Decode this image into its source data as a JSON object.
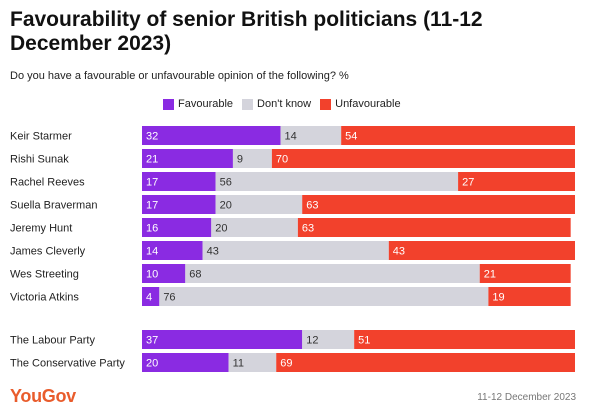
{
  "header": {
    "title": "Favourability of senior British politicians (11-12 December 2023)",
    "subtitle": "Do you have a favourable or unfavourable opinion of the following? %"
  },
  "footer": {
    "brand": "YouGov",
    "date": "11-12 December 2023"
  },
  "colors": {
    "favourable": "#8a2be2",
    "dont_know": "#d4d4dc",
    "unfavourable": "#f2412c"
  },
  "chart_data": {
    "type": "bar",
    "orientation": "horizontal-stacked",
    "title": "Favourability of senior British politicians (11-12 December 2023)",
    "subtitle": "Do you have a favourable or unfavourable opinion of the following? %",
    "legend": [
      "Favourable",
      "Don't know",
      "Unfavourable"
    ],
    "legend_position": "top",
    "categories": [
      "Keir Starmer",
      "Rishi Sunak",
      "Rachel Reeves",
      "Suella Braverman",
      "Jeremy Hunt",
      "James Cleverly",
      "Wes Streeting",
      "Victoria Atkins",
      "The Labour Party",
      "The Conservative Party"
    ],
    "series": [
      {
        "name": "Favourable",
        "values": [
          32,
          21,
          17,
          17,
          16,
          14,
          10,
          4,
          37,
          20
        ]
      },
      {
        "name": "Don't know",
        "values": [
          14,
          9,
          56,
          20,
          20,
          43,
          68,
          76,
          12,
          11
        ]
      },
      {
        "name": "Unfavourable",
        "values": [
          54,
          70,
          27,
          63,
          63,
          43,
          21,
          19,
          51,
          69
        ]
      }
    ],
    "xlim": [
      0,
      100
    ]
  }
}
